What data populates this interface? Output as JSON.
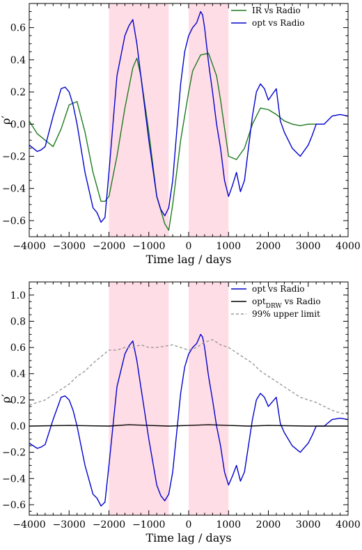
{
  "chart_data": [
    {
      "type": "line",
      "xlabel": "Time lag / days",
      "ylabel": "ρ′",
      "xlim": [
        -4000,
        4000
      ],
      "ylim": [
        -0.7,
        0.75
      ],
      "xticks": [
        -4000,
        -3000,
        -2000,
        -1000,
        0,
        1000,
        2000,
        3000,
        4000
      ],
      "xtick_labels": [
        "−4000",
        "−3000",
        "−2000",
        "−1000",
        "0",
        "1000",
        "2000",
        "3000",
        "4000"
      ],
      "yticks": [
        -0.6,
        -0.4,
        -0.2,
        0.0,
        0.2,
        0.4,
        0.6
      ],
      "ytick_labels": [
        "−0.6",
        "−0.4",
        "−0.2",
        "0.0",
        "0.2",
        "0.4",
        "0.6"
      ],
      "shaded_regions": [
        [
          -2000,
          -500
        ],
        [
          0,
          1000
        ]
      ],
      "shade_color": "#ffdde6",
      "legend_position": "top-right",
      "series": [
        {
          "name": "IR vs Radio",
          "color": "#1d7a1d",
          "dash": "",
          "x": [
            -4000,
            -3800,
            -3600,
            -3400,
            -3200,
            -3000,
            -2800,
            -2600,
            -2400,
            -2200,
            -2100,
            -2000,
            -1800,
            -1600,
            -1400,
            -1300,
            -1200,
            -1000,
            -800,
            -600,
            -500,
            -400,
            -200,
            0,
            100,
            300,
            500,
            700,
            800,
            1000,
            1200,
            1400,
            1600,
            1800,
            2000,
            2200,
            2400,
            2600,
            2800,
            3000,
            3200
          ],
          "y": [
            0.02,
            -0.06,
            -0.1,
            -0.14,
            -0.03,
            0.12,
            0.14,
            -0.05,
            -0.3,
            -0.48,
            -0.48,
            -0.45,
            -0.2,
            0.1,
            0.35,
            0.41,
            0.3,
            -0.05,
            -0.45,
            -0.62,
            -0.66,
            -0.5,
            -0.1,
            0.2,
            0.33,
            0.43,
            0.44,
            0.3,
            0.15,
            -0.2,
            -0.22,
            -0.15,
            0.0,
            0.1,
            0.09,
            0.06,
            0.02,
            0.0,
            -0.01,
            0.0,
            0.0
          ]
        },
        {
          "name": "opt vs Radio",
          "color": "#0000cc",
          "dash": "",
          "x": [
            -4000,
            -3800,
            -3700,
            -3600,
            -3400,
            -3200,
            -3100,
            -3000,
            -2900,
            -2800,
            -2600,
            -2400,
            -2300,
            -2200,
            -2100,
            -2000,
            -1800,
            -1600,
            -1500,
            -1400,
            -1300,
            -1200,
            -1000,
            -800,
            -700,
            -600,
            -500,
            -400,
            -300,
            -200,
            -100,
            0,
            100,
            200,
            300,
            350,
            400,
            500,
            600,
            700,
            800,
            900,
            1000,
            1100,
            1200,
            1300,
            1400,
            1600,
            1700,
            1800,
            1900,
            2000,
            2200,
            2300,
            2400,
            2600,
            2800,
            3000,
            3100,
            3200,
            3400,
            3600,
            3800,
            4000
          ],
          "y": [
            -0.13,
            -0.17,
            -0.16,
            -0.14,
            0.05,
            0.22,
            0.23,
            0.2,
            0.12,
            0.0,
            -0.3,
            -0.52,
            -0.55,
            -0.61,
            -0.58,
            -0.3,
            0.3,
            0.55,
            0.61,
            0.65,
            0.5,
            0.3,
            -0.1,
            -0.45,
            -0.53,
            -0.57,
            -0.52,
            -0.35,
            -0.05,
            0.25,
            0.45,
            0.55,
            0.6,
            0.63,
            0.7,
            0.68,
            0.6,
            0.38,
            0.2,
            0.0,
            -0.15,
            -0.35,
            -0.45,
            -0.38,
            -0.3,
            -0.42,
            -0.35,
            0.05,
            0.2,
            0.25,
            0.22,
            0.15,
            0.22,
            0.02,
            -0.05,
            -0.15,
            -0.2,
            -0.13,
            -0.07,
            0.0,
            0.0,
            0.05,
            0.06,
            0.05
          ]
        }
      ]
    },
    {
      "type": "line",
      "xlabel": "Time lag / days",
      "ylabel": "ρ′",
      "xlim": [
        -4000,
        4000
      ],
      "ylim": [
        -0.68,
        1.1
      ],
      "xticks": [
        -4000,
        -3000,
        -2000,
        -1000,
        0,
        1000,
        2000,
        3000,
        4000
      ],
      "xtick_labels": [
        "−4000",
        "−3000",
        "−2000",
        "−1000",
        "0",
        "1000",
        "2000",
        "3000",
        "4000"
      ],
      "yticks": [
        -0.6,
        -0.4,
        -0.2,
        0.0,
        0.2,
        0.4,
        0.6,
        0.8,
        1.0
      ],
      "ytick_labels": [
        "−0.6",
        "−0.4",
        "−0.2",
        "0.0",
        "0.2",
        "0.4",
        "0.6",
        "0.8",
        "1.0"
      ],
      "shaded_regions": [
        [
          -2000,
          -500
        ],
        [
          0,
          1000
        ]
      ],
      "shade_color": "#ffdde6",
      "legend_position": "top-right",
      "series": [
        {
          "name": "opt vs Radio",
          "color": "#0000cc",
          "dash": "",
          "x": [
            -4000,
            -3800,
            -3700,
            -3600,
            -3400,
            -3200,
            -3100,
            -3000,
            -2900,
            -2800,
            -2600,
            -2400,
            -2300,
            -2200,
            -2100,
            -2000,
            -1800,
            -1600,
            -1500,
            -1400,
            -1300,
            -1200,
            -1000,
            -800,
            -700,
            -600,
            -500,
            -400,
            -300,
            -200,
            -100,
            0,
            100,
            200,
            300,
            350,
            400,
            500,
            600,
            700,
            800,
            900,
            1000,
            1100,
            1200,
            1300,
            1400,
            1600,
            1700,
            1800,
            1900,
            2000,
            2200,
            2300,
            2400,
            2600,
            2800,
            3000,
            3100,
            3200,
            3400,
            3600,
            3800,
            4000
          ],
          "y": [
            -0.13,
            -0.17,
            -0.16,
            -0.14,
            0.05,
            0.22,
            0.23,
            0.2,
            0.12,
            0.0,
            -0.3,
            -0.52,
            -0.55,
            -0.61,
            -0.58,
            -0.3,
            0.3,
            0.55,
            0.61,
            0.65,
            0.5,
            0.3,
            -0.1,
            -0.45,
            -0.53,
            -0.57,
            -0.52,
            -0.35,
            -0.05,
            0.25,
            0.45,
            0.55,
            0.6,
            0.63,
            0.7,
            0.68,
            0.6,
            0.38,
            0.2,
            0.0,
            -0.15,
            -0.35,
            -0.45,
            -0.38,
            -0.3,
            -0.42,
            -0.35,
            0.05,
            0.2,
            0.25,
            0.22,
            0.15,
            0.22,
            0.02,
            -0.05,
            -0.15,
            -0.2,
            -0.13,
            -0.07,
            0.0,
            0.0,
            0.05,
            0.06,
            0.05
          ]
        },
        {
          "name": "opt",
          "name_sub": "DRW",
          "name_suffix": " vs Radio",
          "color": "#000000",
          "dash": "",
          "x": [
            -4000,
            -3000,
            -2000,
            -1500,
            -1000,
            -500,
            0,
            500,
            1000,
            1500,
            2000,
            3000,
            4000
          ],
          "y": [
            0.0,
            0.005,
            0.0,
            0.01,
            0.005,
            0.0,
            0.005,
            0.01,
            0.005,
            0.0,
            0.005,
            0.0,
            0.0
          ]
        },
        {
          "name": "99% upper limit",
          "color": "#999999",
          "dash": "4,3",
          "x": [
            -4000,
            -3800,
            -3600,
            -3400,
            -3200,
            -3000,
            -2800,
            -2600,
            -2400,
            -2200,
            -2000,
            -1800,
            -1600,
            -1400,
            -1200,
            -1000,
            -800,
            -600,
            -400,
            -200,
            0,
            200,
            400,
            600,
            800,
            1000,
            1200,
            1400,
            1600,
            1800,
            2000,
            2200,
            2400,
            2600,
            2800,
            3000,
            3200,
            3400,
            3600,
            3800,
            4000
          ],
          "y": [
            0.16,
            0.18,
            0.2,
            0.24,
            0.28,
            0.32,
            0.38,
            0.42,
            0.48,
            0.53,
            0.58,
            0.58,
            0.6,
            0.6,
            0.62,
            0.6,
            0.6,
            0.61,
            0.62,
            0.6,
            0.58,
            0.6,
            0.64,
            0.66,
            0.62,
            0.6,
            0.56,
            0.52,
            0.48,
            0.42,
            0.38,
            0.34,
            0.3,
            0.26,
            0.22,
            0.2,
            0.18,
            0.15,
            0.12,
            0.1,
            0.09
          ]
        }
      ]
    }
  ]
}
